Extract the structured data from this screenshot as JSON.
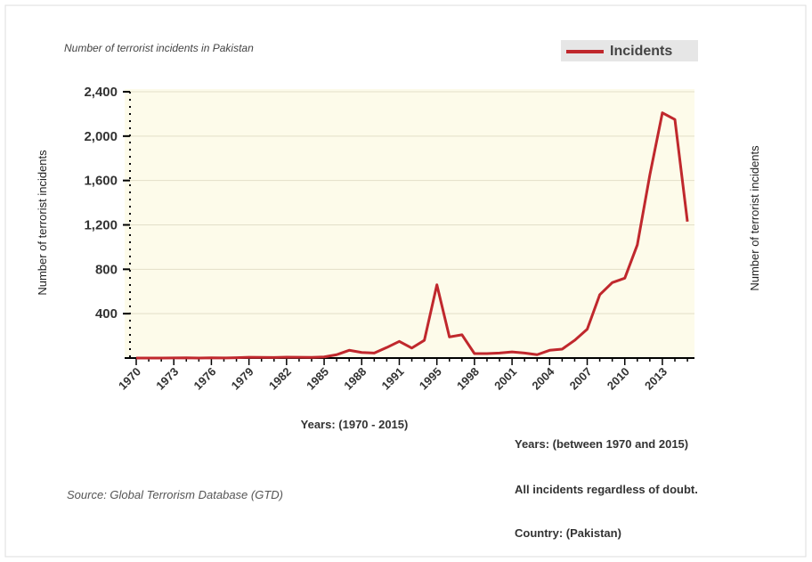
{
  "chart_data": {
    "type": "line",
    "title": "Number of terrorist incidents in Pakistan",
    "y_label": "Number of terrorist incidents",
    "y2_label": "Number of terrorist incidents",
    "x_label": "Years: (1970 - 2015)",
    "source": "Source: Global Terrorism Database (GTD)",
    "notes": [
      "Years: (between 1970 and 2015)",
      "All incidents regardless of doubt.",
      "Country: (Pakistan)"
    ],
    "categories": [
      "1970",
      null,
      null,
      "1973",
      null,
      null,
      "1976",
      null,
      null,
      "1979",
      null,
      null,
      "1982",
      null,
      null,
      "1985",
      null,
      null,
      "1988",
      null,
      null,
      "1991",
      null,
      null,
      "1995",
      null,
      null,
      "1998",
      null,
      null,
      "2001",
      null,
      null,
      "2004",
      null,
      null,
      "2007",
      null,
      null,
      "2010",
      null,
      null,
      "2013",
      null,
      null
    ],
    "series": [
      {
        "name": "Incidents",
        "color": "#c0282d",
        "values": [
          0,
          0,
          0,
          1,
          2,
          0,
          2,
          1,
          3,
          7,
          6,
          5,
          8,
          7,
          6,
          10,
          30,
          70,
          50,
          45,
          95,
          150,
          90,
          160,
          660,
          190,
          210,
          40,
          40,
          45,
          55,
          45,
          30,
          70,
          80,
          160,
          260,
          570,
          680,
          720,
          1020,
          1650,
          2210,
          2150,
          1230
        ]
      }
    ],
    "ylim": [
      0,
      2400
    ],
    "yticks": [
      {
        "value": 400,
        "label": "400"
      },
      {
        "value": 800,
        "label": "800"
      },
      {
        "value": 1200,
        "label": "1,200"
      },
      {
        "value": 1600,
        "label": "1,600"
      },
      {
        "value": 2000,
        "label": "2,000"
      },
      {
        "value": 2400,
        "label": "2,400"
      }
    ],
    "grid": true
  }
}
